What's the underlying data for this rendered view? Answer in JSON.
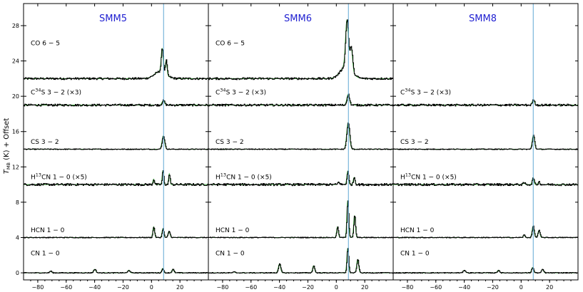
{
  "chart_data": {
    "type": "line",
    "ylabel": "T_MB (K) + Offset",
    "ylabel_main": "T",
    "ylabel_sub": "MB",
    "ylabel_rest": " (K) + Offset",
    "xlim": [
      -90,
      40
    ],
    "ylim": [
      -0.8,
      30.5
    ],
    "x_ticks": [
      -80,
      -60,
      -40,
      -20,
      0,
      20
    ],
    "x_tick_labels": [
      "−80",
      "−60",
      "−40",
      "−20",
      "0",
      "20"
    ],
    "y_ticks": [
      0,
      4,
      8,
      12,
      16,
      20,
      24,
      28
    ],
    "y_tick_labels": [
      "0",
      "4",
      "8",
      "12",
      "16",
      "20",
      "24",
      "28"
    ],
    "grid": false,
    "vline_velocity": 8.5,
    "colors": {
      "spectrum": "#000000",
      "fit": "#2ca02c",
      "vline": "#5fa8d3",
      "title": "#1f1fd1",
      "axis": "#000000"
    },
    "panels": [
      {
        "title": "SMM5"
      },
      {
        "title": "SMM6"
      },
      {
        "title": "SMM8"
      }
    ],
    "transitions": [
      {
        "id": "co",
        "offset": 22,
        "noise": 0.12,
        "label_main": "CO  6 − 5",
        "label_y": 25.8,
        "in_panels": [
          0,
          1
        ]
      },
      {
        "id": "c34s",
        "offset": 19,
        "noise": 0.12,
        "label_pre": "C",
        "label_sup": "34",
        "label_main": "S  3 − 2 (×3)",
        "label_y": 20.2,
        "in_panels": [
          0,
          1,
          2
        ]
      },
      {
        "id": "cs",
        "offset": 14,
        "noise": 0.05,
        "label_main": "CS  3 − 2",
        "label_y": 14.6,
        "in_panels": [
          0,
          1,
          2
        ]
      },
      {
        "id": "h13cn",
        "offset": 10,
        "noise": 0.13,
        "label_pre": "H",
        "label_sup": "13",
        "label_main": "CN  1 − 0 (×5)",
        "label_y": 10.6,
        "in_panels": [
          0,
          1,
          2
        ]
      },
      {
        "id": "hcn",
        "offset": 4,
        "noise": 0.05,
        "label_main": "HCN  1 − 0",
        "label_y": 4.6,
        "in_panels": [
          0,
          1,
          2
        ]
      },
      {
        "id": "cn",
        "offset": 0,
        "noise": 0.05,
        "label_main": "CN  1 − 0",
        "label_y": 2.0,
        "in_panels": [
          0,
          1,
          2
        ]
      }
    ],
    "peaks": {
      "0": {
        "co": [
          [
            7.5,
            2.7,
            0.7
          ],
          [
            10.3,
            1.6,
            0.6
          ],
          [
            6,
            0.8,
            4
          ]
        ],
        "c34s": [
          [
            8.3,
            0.5,
            0.9
          ]
        ],
        "cs": [
          [
            8.3,
            1.5,
            0.9
          ]
        ],
        "h13cn": [
          [
            1.5,
            0.6,
            0.5
          ],
          [
            8.0,
            1.6,
            0.5
          ],
          [
            12.5,
            1.2,
            0.5
          ]
        ],
        "hcn": [
          [
            1.5,
            1.2,
            0.6
          ],
          [
            8.0,
            1.0,
            0.6
          ],
          [
            12.3,
            0.7,
            0.7
          ]
        ],
        "cn": [
          [
            -71,
            0.2,
            0.7
          ],
          [
            -40,
            0.4,
            0.8
          ],
          [
            -16,
            0.3,
            0.7
          ],
          [
            7.8,
            0.5,
            0.6
          ],
          [
            15,
            0.4,
            0.7
          ]
        ]
      },
      "1": {
        "co": [
          [
            7.5,
            5.3,
            1.0
          ],
          [
            10.5,
            2.6,
            0.9
          ],
          [
            6.8,
            1.4,
            4
          ]
        ],
        "c34s": [
          [
            8.3,
            1.2,
            0.9
          ]
        ],
        "cs": [
          [
            8.3,
            3.0,
            1.0
          ]
        ],
        "h13cn": [
          [
            8.0,
            1.5,
            0.6
          ],
          [
            12.5,
            0.8,
            0.6
          ],
          [
            1.6,
            0.3,
            0.6
          ]
        ],
        "hcn": [
          [
            0.8,
            1.2,
            0.6
          ],
          [
            8.0,
            4.2,
            0.6
          ],
          [
            12.8,
            2.5,
            0.6
          ]
        ],
        "cn": [
          [
            -40,
            1.0,
            0.8
          ],
          [
            -16,
            0.8,
            0.7
          ],
          [
            -72,
            0.1,
            0.7
          ],
          [
            8.0,
            2.8,
            0.6
          ],
          [
            15,
            1.5,
            0.7
          ]
        ]
      },
      "2": {
        "c34s": [
          [
            8.6,
            0.6,
            0.8
          ]
        ],
        "cs": [
          [
            8.6,
            1.6,
            0.8
          ]
        ],
        "h13cn": [
          [
            8.4,
            0.8,
            0.6
          ],
          [
            2.0,
            0.2,
            0.6
          ],
          [
            12.5,
            0.3,
            0.6
          ]
        ],
        "hcn": [
          [
            2.0,
            0.3,
            0.6
          ],
          [
            8.4,
            1.3,
            0.7
          ],
          [
            12.5,
            0.8,
            0.7
          ]
        ],
        "cn": [
          [
            -40,
            0.3,
            0.8
          ],
          [
            -16,
            0.3,
            0.7
          ],
          [
            8.0,
            0.6,
            0.7
          ],
          [
            15,
            0.4,
            0.7
          ]
        ]
      }
    }
  }
}
